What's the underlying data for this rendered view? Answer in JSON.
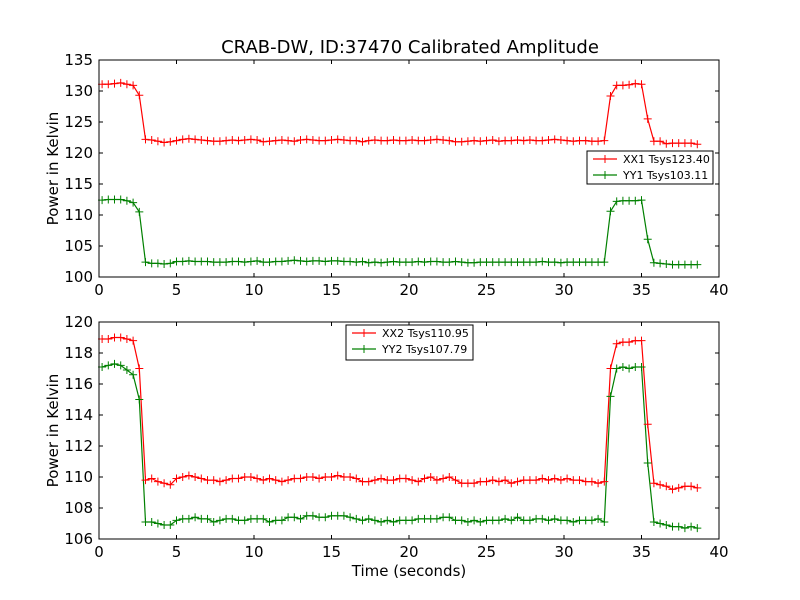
{
  "title": "CRAB-DW, ID:37470 Calibrated Amplitude",
  "colors": {
    "xx": "#ff0000",
    "yy": "#008000",
    "axis": "#000000"
  },
  "chart_data": [
    {
      "type": "line",
      "title": "CRAB-DW, ID:37470 Calibrated Amplitude",
      "xlabel": "",
      "ylabel": "Power in Kelvin",
      "xlim": [
        0,
        40
      ],
      "ylim": [
        100,
        135
      ],
      "xticks": [
        0,
        5,
        10,
        15,
        20,
        25,
        30,
        35,
        40
      ],
      "yticks": [
        100,
        105,
        110,
        115,
        120,
        125,
        130,
        135
      ],
      "xtick_labels": [
        "0",
        "5",
        "10",
        "15",
        "20",
        "25",
        "30",
        "35",
        "40"
      ],
      "ytick_labels": [
        "100",
        "105",
        "110",
        "115",
        "120",
        "125",
        "130",
        "135"
      ],
      "grid": false,
      "legend_position": "right",
      "series": [
        {
          "name": "XX1 Tsys123.40",
          "color": "#ff0000",
          "x": [
            0.2,
            0.6,
            1.0,
            1.4,
            1.8,
            2.2,
            2.6,
            3.0,
            3.4,
            3.8,
            4.2,
            4.6,
            5.0,
            5.4,
            5.8,
            6.2,
            6.6,
            7.0,
            7.4,
            7.8,
            8.2,
            8.6,
            9.0,
            9.4,
            9.8,
            10.2,
            10.6,
            11.0,
            11.4,
            11.8,
            12.2,
            12.6,
            13.0,
            13.4,
            13.8,
            14.2,
            14.6,
            15.0,
            15.4,
            15.8,
            16.2,
            16.6,
            17.0,
            17.4,
            17.8,
            18.2,
            18.6,
            19.0,
            19.4,
            19.8,
            20.2,
            20.6,
            21.0,
            21.4,
            21.8,
            22.2,
            22.6,
            23.0,
            23.4,
            23.8,
            24.2,
            24.6,
            25.0,
            25.4,
            25.8,
            26.2,
            26.6,
            27.0,
            27.4,
            27.8,
            28.2,
            28.6,
            29.0,
            29.4,
            29.8,
            30.2,
            30.6,
            31.0,
            31.4,
            31.8,
            32.2,
            32.6,
            33.0,
            33.4,
            33.8,
            34.2,
            34.6,
            35.0,
            35.4,
            35.8,
            36.2,
            36.6,
            37.0,
            37.4,
            37.8,
            38.2,
            38.6
          ],
          "y": [
            131.1,
            131.1,
            131.2,
            131.3,
            131.1,
            130.9,
            129.3,
            122.2,
            122.1,
            121.9,
            121.7,
            121.8,
            122.0,
            122.2,
            122.3,
            122.2,
            122.1,
            122.0,
            121.9,
            121.9,
            122.0,
            122.1,
            122.0,
            122.1,
            122.2,
            122.1,
            121.8,
            121.9,
            122.0,
            122.1,
            122.0,
            121.9,
            122.1,
            122.2,
            122.1,
            122.0,
            122.0,
            122.1,
            122.2,
            122.1,
            122.0,
            122.0,
            121.8,
            122.0,
            122.1,
            122.0,
            122.0,
            122.1,
            122.0,
            122.0,
            122.1,
            122.0,
            122.0,
            122.1,
            122.2,
            122.1,
            122.0,
            121.8,
            121.8,
            121.9,
            122.0,
            121.9,
            122.0,
            122.1,
            121.9,
            122.0,
            122.0,
            122.1,
            122.0,
            122.1,
            122.0,
            122.0,
            122.1,
            122.2,
            122.1,
            122.0,
            121.9,
            122.0,
            122.0,
            121.9,
            121.9,
            122.0,
            129.2,
            130.9,
            130.9,
            131.0,
            131.2,
            131.1,
            125.5,
            121.9,
            121.9,
            121.5,
            121.6,
            121.6,
            121.6,
            121.6,
            121.4
          ]
        },
        {
          "name": "YY1 Tsys103.11",
          "color": "#008000",
          "x": [
            0.2,
            0.6,
            1.0,
            1.4,
            1.8,
            2.2,
            2.6,
            3.0,
            3.4,
            3.8,
            4.2,
            4.6,
            5.0,
            5.4,
            5.8,
            6.2,
            6.6,
            7.0,
            7.4,
            7.8,
            8.2,
            8.6,
            9.0,
            9.4,
            9.8,
            10.2,
            10.6,
            11.0,
            11.4,
            11.8,
            12.2,
            12.6,
            13.0,
            13.4,
            13.8,
            14.2,
            14.6,
            15.0,
            15.4,
            15.8,
            16.2,
            16.6,
            17.0,
            17.4,
            17.8,
            18.2,
            18.6,
            19.0,
            19.4,
            19.8,
            20.2,
            20.6,
            21.0,
            21.4,
            21.8,
            22.2,
            22.6,
            23.0,
            23.4,
            23.8,
            24.2,
            24.6,
            25.0,
            25.4,
            25.8,
            26.2,
            26.6,
            27.0,
            27.4,
            27.8,
            28.2,
            28.6,
            29.0,
            29.4,
            29.8,
            30.2,
            30.6,
            31.0,
            31.4,
            31.8,
            32.2,
            32.6,
            33.0,
            33.4,
            33.8,
            34.2,
            34.6,
            35.0,
            35.4,
            35.8,
            36.2,
            36.6,
            37.0,
            37.4,
            37.8,
            38.2,
            38.6
          ],
          "y": [
            112.4,
            112.5,
            112.5,
            112.5,
            112.3,
            112.0,
            110.5,
            102.4,
            102.2,
            102.2,
            102.1,
            102.2,
            102.5,
            102.5,
            102.6,
            102.5,
            102.5,
            102.5,
            102.4,
            102.4,
            102.4,
            102.5,
            102.5,
            102.4,
            102.5,
            102.6,
            102.4,
            102.4,
            102.5,
            102.5,
            102.6,
            102.7,
            102.6,
            102.5,
            102.6,
            102.6,
            102.5,
            102.6,
            102.6,
            102.5,
            102.5,
            102.4,
            102.5,
            102.3,
            102.4,
            102.3,
            102.4,
            102.5,
            102.4,
            102.4,
            102.4,
            102.5,
            102.4,
            102.5,
            102.5,
            102.4,
            102.4,
            102.5,
            102.4,
            102.3,
            102.3,
            102.4,
            102.4,
            102.4,
            102.4,
            102.4,
            102.4,
            102.4,
            102.4,
            102.4,
            102.4,
            102.5,
            102.4,
            102.4,
            102.3,
            102.4,
            102.4,
            102.4,
            102.4,
            102.4,
            102.4,
            102.4,
            110.6,
            112.2,
            112.3,
            112.3,
            112.3,
            112.4,
            106.1,
            102.3,
            102.2,
            102.1,
            102.0,
            102.0,
            102.0,
            102.0,
            102.0
          ]
        }
      ]
    },
    {
      "type": "line",
      "title": "",
      "xlabel": "Time (seconds)",
      "ylabel": "Power in Kelvin",
      "xlim": [
        0,
        40
      ],
      "ylim": [
        106,
        120
      ],
      "xticks": [
        0,
        5,
        10,
        15,
        20,
        25,
        30,
        35,
        40
      ],
      "yticks": [
        106,
        108,
        110,
        112,
        114,
        116,
        118,
        120
      ],
      "xtick_labels": [
        "0",
        "5",
        "10",
        "15",
        "20",
        "25",
        "30",
        "35",
        "40"
      ],
      "ytick_labels": [
        "106",
        "108",
        "110",
        "112",
        "114",
        "116",
        "118",
        "120"
      ],
      "grid": false,
      "legend_position": "upper center",
      "series": [
        {
          "name": "XX2 Tsys110.95",
          "color": "#ff0000",
          "x": [
            0.2,
            0.6,
            1.0,
            1.4,
            1.8,
            2.2,
            2.6,
            3.0,
            3.4,
            3.8,
            4.2,
            4.6,
            5.0,
            5.4,
            5.8,
            6.2,
            6.6,
            7.0,
            7.4,
            7.8,
            8.2,
            8.6,
            9.0,
            9.4,
            9.8,
            10.2,
            10.6,
            11.0,
            11.4,
            11.8,
            12.2,
            12.6,
            13.0,
            13.4,
            13.8,
            14.2,
            14.6,
            15.0,
            15.4,
            15.8,
            16.2,
            16.6,
            17.0,
            17.4,
            17.8,
            18.2,
            18.6,
            19.0,
            19.4,
            19.8,
            20.2,
            20.6,
            21.0,
            21.4,
            21.8,
            22.2,
            22.6,
            23.0,
            23.4,
            23.8,
            24.2,
            24.6,
            25.0,
            25.4,
            25.8,
            26.2,
            26.6,
            27.0,
            27.4,
            27.8,
            28.2,
            28.6,
            29.0,
            29.4,
            29.8,
            30.2,
            30.6,
            31.0,
            31.4,
            31.8,
            32.2,
            32.6,
            33.0,
            33.4,
            33.8,
            34.2,
            34.6,
            35.0,
            35.4,
            35.8,
            36.2,
            36.6,
            37.0,
            37.4,
            37.8,
            38.2,
            38.6
          ],
          "y": [
            118.9,
            118.9,
            119.0,
            119.0,
            118.9,
            118.8,
            117.0,
            109.8,
            109.9,
            109.7,
            109.6,
            109.5,
            109.9,
            110.0,
            110.1,
            110.0,
            109.9,
            109.8,
            109.8,
            109.7,
            109.8,
            109.9,
            109.9,
            110.0,
            110.0,
            109.9,
            109.8,
            109.9,
            109.8,
            109.7,
            109.8,
            109.9,
            109.9,
            110.0,
            110.0,
            109.9,
            110.0,
            110.0,
            110.1,
            110.0,
            110.0,
            109.9,
            109.7,
            109.7,
            109.8,
            109.9,
            109.8,
            109.8,
            109.9,
            109.9,
            109.8,
            109.7,
            109.9,
            110.0,
            109.8,
            109.9,
            110.0,
            109.8,
            109.6,
            109.6,
            109.6,
            109.7,
            109.7,
            109.8,
            109.7,
            109.8,
            109.6,
            109.7,
            109.8,
            109.8,
            109.8,
            109.9,
            109.8,
            109.9,
            109.8,
            109.9,
            109.8,
            109.8,
            109.7,
            109.7,
            109.6,
            109.7,
            117.0,
            118.6,
            118.7,
            118.7,
            118.8,
            118.8,
            113.4,
            109.6,
            109.5,
            109.4,
            109.2,
            109.3,
            109.4,
            109.4,
            109.3
          ]
        },
        {
          "name": "YY2 Tsys107.79",
          "color": "#008000",
          "x": [
            0.2,
            0.6,
            1.0,
            1.4,
            1.8,
            2.2,
            2.6,
            3.0,
            3.4,
            3.8,
            4.2,
            4.6,
            5.0,
            5.4,
            5.8,
            6.2,
            6.6,
            7.0,
            7.4,
            7.8,
            8.2,
            8.6,
            9.0,
            9.4,
            9.8,
            10.2,
            10.6,
            11.0,
            11.4,
            11.8,
            12.2,
            12.6,
            13.0,
            13.4,
            13.8,
            14.2,
            14.6,
            15.0,
            15.4,
            15.8,
            16.2,
            16.6,
            17.0,
            17.4,
            17.8,
            18.2,
            18.6,
            19.0,
            19.4,
            19.8,
            20.2,
            20.6,
            21.0,
            21.4,
            21.8,
            22.2,
            22.6,
            23.0,
            23.4,
            23.8,
            24.2,
            24.6,
            25.0,
            25.4,
            25.8,
            26.2,
            26.6,
            27.0,
            27.4,
            27.8,
            28.2,
            28.6,
            29.0,
            29.4,
            29.8,
            30.2,
            30.6,
            31.0,
            31.4,
            31.8,
            32.2,
            32.6,
            33.0,
            33.4,
            33.8,
            34.2,
            34.6,
            35.0,
            35.4,
            35.8,
            36.2,
            36.6,
            37.0,
            37.4,
            37.8,
            38.2,
            38.6
          ],
          "y": [
            117.1,
            117.2,
            117.3,
            117.2,
            116.9,
            116.6,
            115.0,
            107.1,
            107.1,
            107.0,
            106.9,
            106.9,
            107.2,
            107.3,
            107.3,
            107.4,
            107.3,
            107.3,
            107.1,
            107.2,
            107.3,
            107.3,
            107.2,
            107.2,
            107.3,
            107.3,
            107.3,
            107.1,
            107.2,
            107.2,
            107.4,
            107.4,
            107.3,
            107.5,
            107.5,
            107.4,
            107.4,
            107.5,
            107.5,
            107.5,
            107.4,
            107.3,
            107.2,
            107.3,
            107.2,
            107.1,
            107.2,
            107.1,
            107.2,
            107.2,
            107.2,
            107.3,
            107.3,
            107.3,
            107.3,
            107.4,
            107.4,
            107.2,
            107.2,
            107.1,
            107.2,
            107.1,
            107.2,
            107.2,
            107.2,
            107.3,
            107.2,
            107.4,
            107.2,
            107.2,
            107.3,
            107.3,
            107.2,
            107.3,
            107.2,
            107.2,
            107.1,
            107.2,
            107.2,
            107.2,
            107.3,
            107.1,
            115.2,
            117.0,
            117.1,
            117.0,
            117.1,
            117.1,
            110.9,
            107.1,
            107.0,
            106.9,
            106.8,
            106.8,
            106.7,
            106.8,
            106.7
          ]
        }
      ]
    }
  ]
}
